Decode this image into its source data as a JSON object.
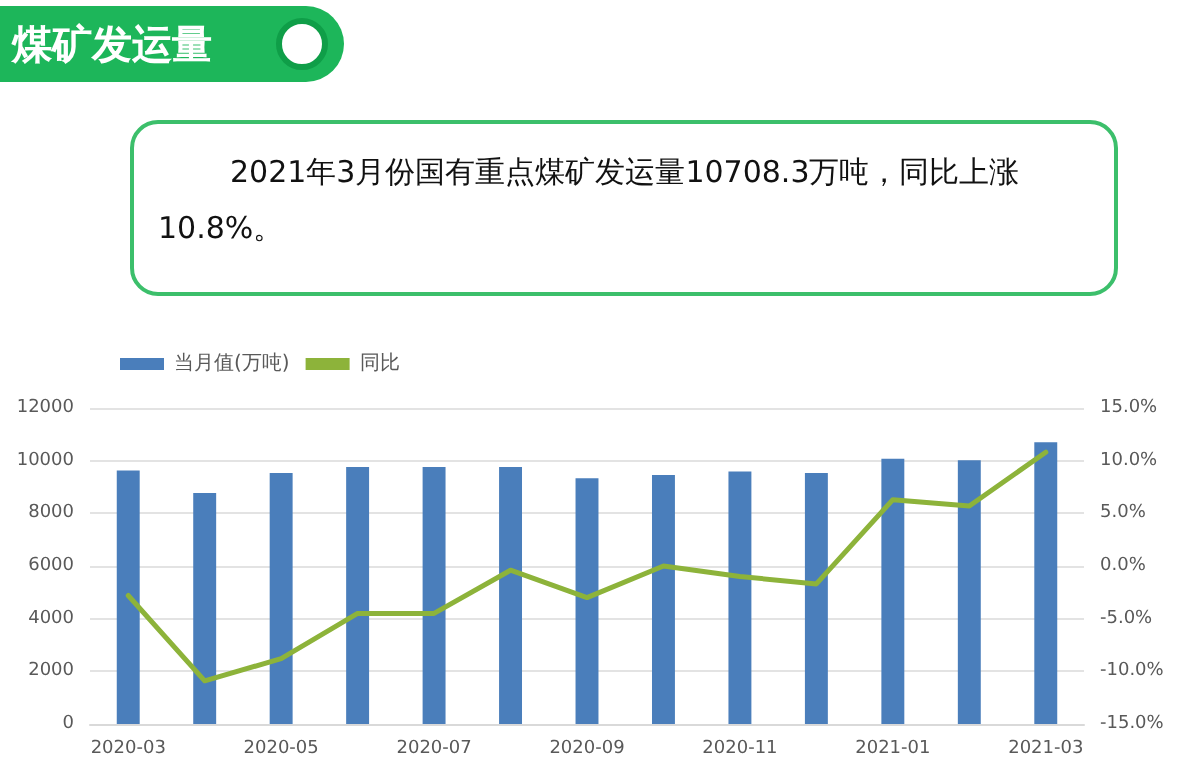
{
  "chart_data": {
    "type": "bar",
    "title": "煤矿发运量",
    "subtitle": "2021年3月份国有重点煤矿发运量10708.3万吨，同比上涨10.8%。",
    "categories": [
      "2020-03",
      null,
      "2020-05",
      null,
      "2020-07",
      null,
      "2020-09",
      null,
      "2020-11",
      null,
      "2021-01",
      null,
      "2021-03"
    ],
    "series": [
      {
        "name": "当月值(万吨)",
        "color": "#4a7ebb",
        "values": [
          9630,
          8770,
          9530,
          9760,
          9760,
          9760,
          9330,
          9460,
          9590,
          9530,
          10070,
          10020,
          10700
        ]
      },
      {
        "name": "同比",
        "type": "line",
        "axis": "y2",
        "color": "#8db33a",
        "values": [
          -2.8,
          -10.9,
          -8.8,
          -4.5,
          -4.5,
          -0.4,
          -3.0,
          0.0,
          -1.0,
          -1.7,
          6.3,
          5.7,
          10.8
        ]
      }
    ],
    "ylim": [
      0,
      12000
    ],
    "yticks": [
      0,
      2000,
      4000,
      6000,
      8000,
      10000,
      12000
    ],
    "y2lim": [
      -15,
      15
    ],
    "y2ticks": [
      {
        "value": -15,
        "label": "-15.0%"
      },
      {
        "value": -10,
        "label": "-10.0%"
      },
      {
        "value": -5,
        "label": "-5.0%"
      },
      {
        "value": 0,
        "label": "0.0%"
      },
      {
        "value": 5,
        "label": "5.0%"
      },
      {
        "value": 10,
        "label": "10.0%"
      },
      {
        "value": 15,
        "label": "15.0%"
      }
    ],
    "grid": "y",
    "legend": "top left",
    "marker": "none",
    "line_style": "solid"
  }
}
